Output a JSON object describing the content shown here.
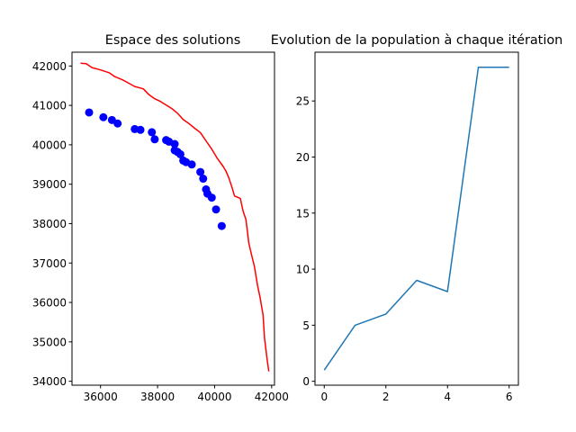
{
  "chart_data": [
    {
      "type": "scatter",
      "title": "Espace des solutions",
      "xlabel": "",
      "ylabel": "",
      "xlim": [
        35000,
        42100
      ],
      "ylim": [
        33900,
        42350
      ],
      "xticks": [
        "36000",
        "38000",
        "40000",
        "42000"
      ],
      "yticks": [
        "34000",
        "35000",
        "36000",
        "37000",
        "38000",
        "39000",
        "40000",
        "41000",
        "42000"
      ],
      "grid": false,
      "series": [
        {
          "kind": "line",
          "color": "#ff0000",
          "x": [
            35300,
            35500,
            35700,
            36000,
            36300,
            36500,
            36800,
            37000,
            37200,
            37500,
            37700,
            37900,
            38100,
            38300,
            38500,
            38700,
            38900,
            39100,
            39300,
            39500,
            39700,
            39900,
            40100,
            40300,
            40400,
            40500,
            40600,
            40700,
            40900,
            41000,
            41100,
            41200,
            41300,
            41400,
            41500,
            41600,
            41700,
            41750,
            41800,
            41850,
            41900
          ],
          "y": [
            42070,
            42060,
            41960,
            41900,
            41830,
            41730,
            41640,
            41560,
            41480,
            41420,
            41270,
            41170,
            41100,
            41010,
            40920,
            40800,
            40640,
            40540,
            40420,
            40310,
            40100,
            39890,
            39650,
            39450,
            39330,
            39160,
            38940,
            38700,
            38640,
            38320,
            38100,
            37500,
            37200,
            36900,
            36450,
            36100,
            35680,
            35100,
            34800,
            34500,
            34250
          ]
        },
        {
          "kind": "points",
          "color": "#0000ff",
          "x": [
            35600,
            36100,
            36400,
            36600,
            37200,
            37400,
            37800,
            37900,
            38300,
            38400,
            38600,
            38600,
            38700,
            38800,
            38900,
            39000,
            39200,
            39500,
            39600,
            39700,
            39750,
            39900,
            40050,
            40250
          ],
          "y": [
            40820,
            40700,
            40630,
            40540,
            40400,
            40380,
            40320,
            40140,
            40120,
            40080,
            40020,
            39860,
            39820,
            39760,
            39600,
            39560,
            39500,
            39310,
            39140,
            38870,
            38760,
            38660,
            38360,
            37940
          ]
        }
      ]
    },
    {
      "type": "line",
      "title": "Evolution de la population à chaque itération",
      "xlabel": "",
      "ylabel": "",
      "xlim": [
        -0.3,
        6.3
      ],
      "ylim": [
        -0.35,
        29.35
      ],
      "xticks": [
        "0",
        "2",
        "4",
        "6"
      ],
      "yticks": [
        "0",
        "5",
        "10",
        "15",
        "20",
        "25"
      ],
      "grid": false,
      "series": [
        {
          "color": "#1f77b4",
          "x": [
            0,
            1,
            2,
            3,
            4,
            5,
            6
          ],
          "y": [
            1,
            5,
            6,
            9,
            8,
            28,
            28
          ]
        }
      ]
    }
  ]
}
